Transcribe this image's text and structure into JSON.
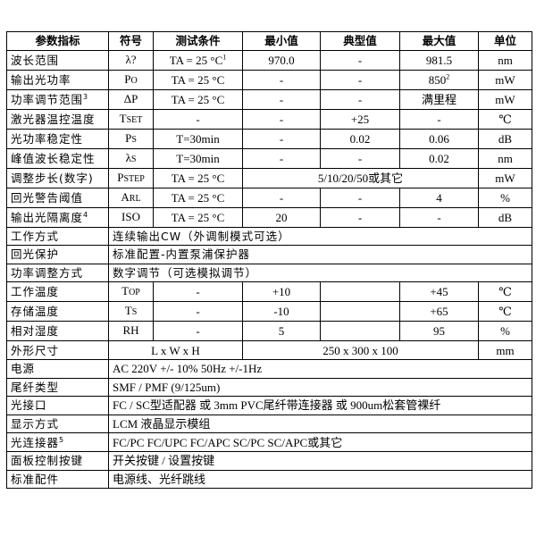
{
  "headers": [
    "参数指标",
    "符号",
    "测试条件",
    "最小值",
    "典型值",
    "最大值",
    "单位"
  ],
  "spec_rows": [
    {
      "param": "波长范围",
      "param_sup": "",
      "sym": "λ?",
      "sym_sub": "",
      "cond": "TA = 25 °C",
      "cond_sup": "1",
      "min": "970.0",
      "typ": "-",
      "max": "981.5",
      "max_sup": "",
      "unit": "nm"
    },
    {
      "param": "输出光功率",
      "param_sup": "",
      "sym": "P",
      "sym_sub": "O",
      "cond": "TA = 25 °C",
      "cond_sup": "",
      "min": "-",
      "typ": "-",
      "max": "850",
      "max_sup": "2",
      "unit": "mW"
    },
    {
      "param": "功率调节范围",
      "param_sup": "3",
      "sym": "ΔP",
      "sym_sub": "",
      "cond": "TA = 25 °C",
      "cond_sup": "",
      "min": "-",
      "typ": "-",
      "max": "满里程",
      "max_sup": "",
      "unit": "mW"
    },
    {
      "param": "激光器温控温度",
      "param_sup": "",
      "sym": "T",
      "sym_sub": "SET",
      "cond": "-",
      "cond_sup": "",
      "min": "-",
      "typ": "+25",
      "max": "-",
      "max_sup": "",
      "unit": "℃"
    },
    {
      "param": "光功率稳定性",
      "param_sup": "",
      "sym": "P",
      "sym_sub": "S",
      "cond": "T=30min",
      "cond_sup": "",
      "min": "-",
      "typ": "0.02",
      "max": "0.06",
      "max_sup": "",
      "unit": "dB"
    },
    {
      "param": "峰值波长稳定性",
      "param_sup": "",
      "sym": "λ",
      "sym_sub": "S",
      "cond": "T=30min",
      "cond_sup": "",
      "min": "-",
      "typ": "-",
      "max": "0.02",
      "max_sup": "",
      "unit": "nm"
    }
  ],
  "step_row": {
    "param": "调整步长(数字)",
    "sym": "P",
    "sym_sub": "STEP",
    "cond": "TA = 25 °C",
    "value": "5/10/20/50或其它",
    "unit": "mW"
  },
  "spec_rows2": [
    {
      "param": "回光警告阈值",
      "param_sup": "",
      "sym": "A",
      "sym_sub": "RL",
      "cond": "TA = 25 °C",
      "min": "-",
      "typ": "-",
      "max": "4",
      "unit": "%"
    },
    {
      "param": "输出光隔离度",
      "param_sup": "4",
      "sym": "ISO",
      "sym_sub": "",
      "cond": "TA = 25 °C",
      "min": "20",
      "typ": "-",
      "max": "-",
      "unit": "dB"
    }
  ],
  "desc_rows1": [
    {
      "param": "工作方式",
      "value": "连续输出CW（外调制模式可选）"
    },
    {
      "param": "回光保护",
      "value": "标准配置-内置泵浦保护器"
    },
    {
      "param": "功率调整方式",
      "value": "数字调节（可选模拟调节）"
    }
  ],
  "env_rows": [
    {
      "param": "工作温度",
      "sym": "T",
      "sym_sub": "OP",
      "cond": "-",
      "min": "+10",
      "typ": "",
      "max": "+45",
      "unit": "℃"
    },
    {
      "param": "存储温度",
      "sym": "T",
      "sym_sub": "S",
      "cond": "-",
      "min": "-10",
      "typ": "",
      "max": "+65",
      "unit": "℃"
    },
    {
      "param": "相对湿度",
      "sym": "RH",
      "sym_sub": "",
      "cond": "-",
      "min": "5",
      "typ": "",
      "max": "95",
      "unit": "%"
    }
  ],
  "dim_row": {
    "param": "外形尺寸",
    "label": "L x W x H",
    "value": "250 x 300 x 100",
    "unit": "mm"
  },
  "desc_rows2": [
    {
      "param": "电源",
      "param_sup": "",
      "value": "AC 220V +/- 10% 50Hz +/-1Hz"
    },
    {
      "param": "尾纤类型",
      "param_sup": "",
      "value": "SMF / PMF (9/125um)"
    },
    {
      "param": "光接口",
      "param_sup": "",
      "value": "FC / SC型适配器  或  3mm PVC尾纤带连接器  或  900um松套管裸纤"
    },
    {
      "param": "显示方式",
      "param_sup": "",
      "value": "LCM 液晶显示模组"
    },
    {
      "param": "光连接器",
      "param_sup": "5",
      "value": "FC/PC FC/UPC FC/APC SC/PC SC/APC或其它"
    },
    {
      "param": "面板控制按键",
      "param_sup": "",
      "value": "开关按键  /  设置按键"
    },
    {
      "param": "标准配件",
      "param_sup": "",
      "value": "电源线、光纤跳线"
    }
  ]
}
